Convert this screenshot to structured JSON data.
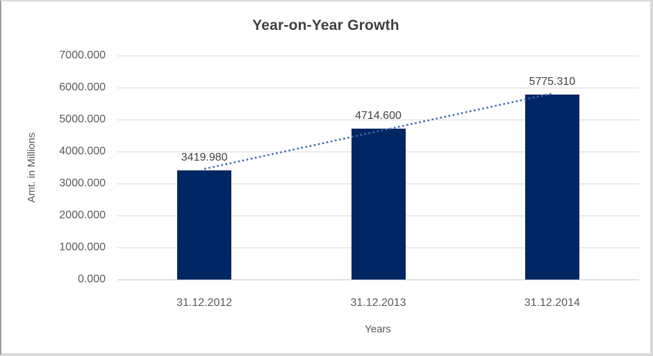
{
  "chart_data": {
    "type": "bar",
    "title": "Year-on-Year Growth",
    "xlabel": "Years",
    "ylabel": "Amt. in Millions",
    "categories": [
      "31.12.2012",
      "31.12.2013",
      "31.12.2014"
    ],
    "values": [
      3419.98,
      4714.6,
      5775.31
    ],
    "data_labels": [
      "3419.980",
      "4714.600",
      "5775.310"
    ],
    "ylim": [
      0,
      7000
    ],
    "ytick_step": 1000,
    "ytick_labels": [
      "0.000",
      "1000.000",
      "2000.000",
      "3000.000",
      "4000.000",
      "5000.000",
      "6000.000",
      "7000.000"
    ],
    "grid": true,
    "legend": "none",
    "trendline": true,
    "colors": {
      "bar": "#002663",
      "trendline": "#3e6cb0",
      "grid": "#d9d9d9",
      "axis_line": "#c6c6c6",
      "title_text": "#3f3f3f",
      "axis_text": "#595959",
      "label_text": "#404040",
      "background": "#ffffff"
    }
  }
}
